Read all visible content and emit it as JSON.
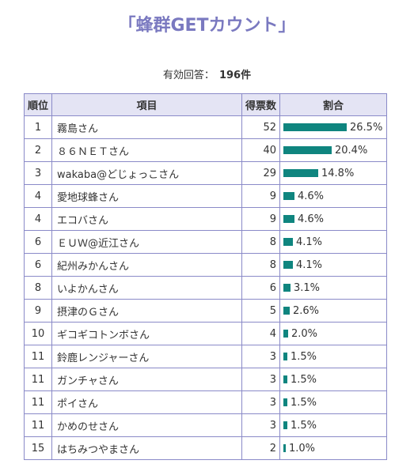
{
  "page": {
    "title": "「蜂群GETカウント」",
    "total_label": "有効回答：",
    "total_value": "196件"
  },
  "table": {
    "headers": {
      "rank": "順位",
      "item": "項目",
      "votes": "得票数",
      "ratio": "割合"
    },
    "bar_color": "#0f857f",
    "rows": [
      {
        "rank": "1",
        "item": "霧島さん",
        "votes": "52",
        "ratio": "26.5%",
        "fraction": 0.265
      },
      {
        "rank": "2",
        "item": "８６ＮＥＴさん",
        "votes": "40",
        "ratio": "20.4%",
        "fraction": 0.204
      },
      {
        "rank": "3",
        "item": "wakaba@どじょっこさん",
        "votes": "29",
        "ratio": "14.8%",
        "fraction": 0.148
      },
      {
        "rank": "4",
        "item": "愛地球蜂さん",
        "votes": "9",
        "ratio": "4.6%",
        "fraction": 0.046
      },
      {
        "rank": "4",
        "item": "エコバさん",
        "votes": "9",
        "ratio": "4.6%",
        "fraction": 0.046
      },
      {
        "rank": "6",
        "item": "ＥＵＷ@近江さん",
        "votes": "8",
        "ratio": "4.1%",
        "fraction": 0.041
      },
      {
        "rank": "6",
        "item": "紀州みかんさん",
        "votes": "8",
        "ratio": "4.1%",
        "fraction": 0.041
      },
      {
        "rank": "8",
        "item": "いよかんさん",
        "votes": "6",
        "ratio": "3.1%",
        "fraction": 0.031
      },
      {
        "rank": "9",
        "item": "摂津のＧさん",
        "votes": "5",
        "ratio": "2.6%",
        "fraction": 0.026
      },
      {
        "rank": "10",
        "item": "ギコギコトンボさん",
        "votes": "4",
        "ratio": "2.0%",
        "fraction": 0.02
      },
      {
        "rank": "11",
        "item": "鈴鹿レンジャーさん",
        "votes": "3",
        "ratio": "1.5%",
        "fraction": 0.015
      },
      {
        "rank": "11",
        "item": "ガンチャさん",
        "votes": "3",
        "ratio": "1.5%",
        "fraction": 0.015
      },
      {
        "rank": "11",
        "item": "ポイさん",
        "votes": "3",
        "ratio": "1.5%",
        "fraction": 0.015
      },
      {
        "rank": "11",
        "item": "かめのせさん",
        "votes": "3",
        "ratio": "1.5%",
        "fraction": 0.015
      },
      {
        "rank": "15",
        "item": "はちみつやまさん",
        "votes": "2",
        "ratio": "1.0%",
        "fraction": 0.01
      }
    ]
  }
}
